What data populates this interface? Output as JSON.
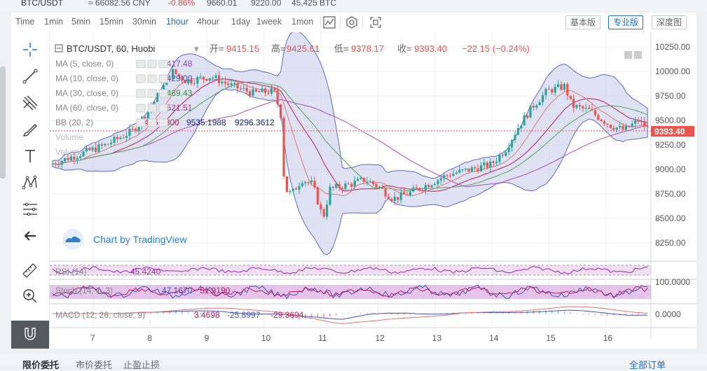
{
  "ticker": {
    "pair": "BTC/USDT",
    "cny": "≈ 66082.56 CNY",
    "change": "-0.86%",
    "high": "9660.01",
    "low": "9220.00",
    "volume": "45,425 BTC"
  },
  "timeframes": [
    "Time",
    "1min",
    "5min",
    "15min",
    "30min",
    "1hour",
    "4hour",
    "1day",
    "1week",
    "1mon"
  ],
  "active_timeframe": "1hour",
  "toolbar_icons": [
    "indicators-icon",
    "settings-icon",
    "fullscreen-icon"
  ],
  "views": [
    "基本版",
    "专业版",
    "深度图"
  ],
  "active_view": "专业版",
  "left_tools": [
    "crosshair-icon",
    "trend-line-icon",
    "pitchfork-icon",
    "brush-icon",
    "text-icon",
    "pattern-icon",
    "fib-icon",
    "back-arrow-icon",
    "ruler-icon",
    "zoom-in-icon",
    "magnet-icon"
  ],
  "legend": {
    "symbol": "BTC/USDT, 60, Huobi",
    "open_label": "开=",
    "open": "9415.15",
    "high_label": "高=",
    "high": "9425.61",
    "low_label": "低=",
    "low": "9378.17",
    "close_label": "收=",
    "close": "9393.40",
    "change": "−22.15 (−0.24%)"
  },
  "indicators": [
    {
      "label": "MA (5, close, 0)",
      "value": "9417.48",
      "color": "#8e44ad"
    },
    {
      "label": "MA (10, close, 0)",
      "value": "9429.00",
      "color": "#3f51b5"
    },
    {
      "label": "MA (30, close, 0)",
      "value": "9469.43",
      "color": "#3e8e3e"
    },
    {
      "label": "MA (60, close, 0)",
      "value": "9521.51",
      "color": "#b0306f"
    },
    {
      "label": "BB (20, 2)",
      "values": [
        "9415.7800",
        "9535.1988",
        "9296.3612"
      ],
      "colors": [
        "#c2185b",
        "#1a237e",
        "#1a237e"
      ]
    },
    {
      "label": "Volume"
    },
    {
      "label": "Volume"
    }
  ],
  "watermark": "Chart by TradingView",
  "price_axis": [
    "10250.00",
    "10000.00",
    "9750.00",
    "9500.00",
    "9250.00",
    "9000.00",
    "8750.00",
    "8500.00",
    "8250.00"
  ],
  "last_price": "9393.40",
  "rsi": {
    "label": "RSI (14)",
    "value": "45.4240",
    "axis": ""
  },
  "stoch": {
    "label": "Stoch (14, 1, 3)",
    "k": "47.1670",
    "d": "51.9190",
    "axis": "100.0000"
  },
  "macd": {
    "label": "MACD (12, 26, close, 9)",
    "v1": "3.4698",
    "v2": "-25.8997",
    "v3": "-29.3694",
    "axis": "0.0000"
  },
  "time_axis": [
    "7",
    "8",
    "9",
    "10",
    "11",
    "12",
    "13",
    "14",
    "15",
    "16"
  ],
  "bottom_tabs": [
    "限价委托",
    "市价委托",
    "止盈止损"
  ],
  "bottom_right": "全部订单",
  "colors": {
    "up": "#26a69a",
    "down": "#ef5350",
    "bb_fill": "#c5cae9",
    "accent": "#1c6fd3"
  }
}
